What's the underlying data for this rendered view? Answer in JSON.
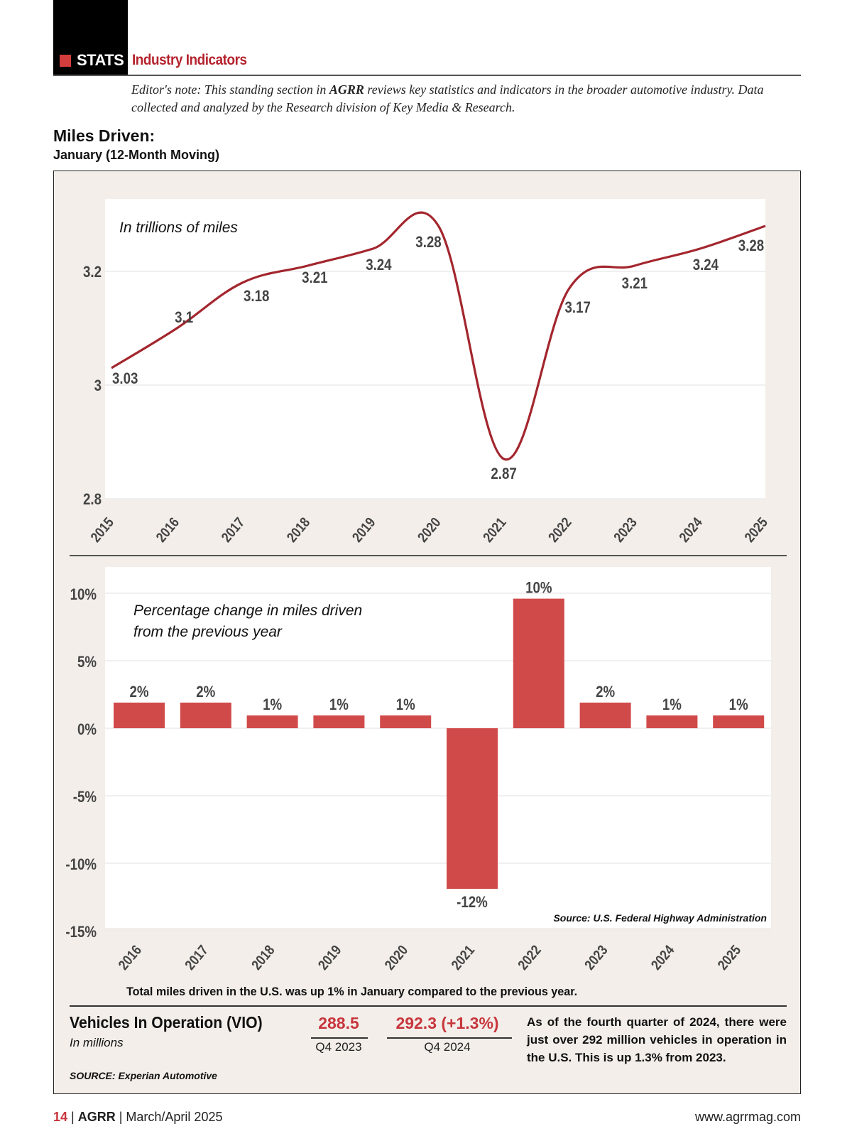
{
  "header": {
    "section_tag": "STATS",
    "section_name": "Industry Indicators",
    "editor_note_prefix": "Editor's note: This standing section in ",
    "editor_note_brand": "AGRR",
    "editor_note_suffix": " reviews key statistics and indicators in the broader automotive industry. Data collected and analyzed by the Research division of Key Media & Research.",
    "colors": {
      "accent": "#c8363d",
      "section_name": "#b5232e",
      "panel_bg": "#f3eee9",
      "line": "#a3262e",
      "bar": "#d14a4a"
    }
  },
  "title": "Miles Driven:",
  "subtitle": "January (12-Month Moving)",
  "chart_data": [
    {
      "type": "line",
      "title": "In trillions of miles",
      "xlabel": "",
      "ylabel": "",
      "x": [
        "2015",
        "2016",
        "2017",
        "2018",
        "2019",
        "2020",
        "2021",
        "2022",
        "2023",
        "2024",
        "2025"
      ],
      "values": [
        3.03,
        3.1,
        3.18,
        3.21,
        3.24,
        3.28,
        2.87,
        3.17,
        3.21,
        3.24,
        3.28
      ],
      "data_labels": [
        "3.03",
        "3.1",
        "3.18",
        "3.21",
        "3.24",
        "3.28",
        "2.87",
        "3.17",
        "3.21",
        "3.24",
        "3.28"
      ],
      "yticks": [
        "2.8",
        "3",
        "3.2"
      ],
      "ytick_values": [
        2.8,
        3.0,
        3.2
      ],
      "ylim": [
        2.8,
        3.3
      ],
      "grid": true
    },
    {
      "type": "bar",
      "title": "Percentage change in miles driven from the previous year",
      "categories": [
        "2016",
        "2017",
        "2018",
        "2019",
        "2020",
        "2021",
        "2022",
        "2023",
        "2024",
        "2025"
      ],
      "values": [
        2,
        2,
        1,
        1,
        1,
        -12,
        10,
        2,
        1,
        1
      ],
      "data_labels": [
        "2%",
        "2%",
        "1%",
        "1%",
        "1%",
        "-12%",
        "10%",
        "2%",
        "1%",
        "1%"
      ],
      "yticks": [
        "10%",
        "5%",
        "0%",
        "-5%",
        "-10%",
        "-15%"
      ],
      "ytick_values": [
        10,
        5,
        0,
        -5,
        -10,
        -15
      ],
      "ylim": [
        -15,
        10
      ],
      "grid": true,
      "source": "Source: U.S. Federal Highway Administration"
    }
  ],
  "caption": "Total miles driven in the U.S. was up 1% in January compared to the previous year.",
  "vio": {
    "title": "Vehicles In Operation (VIO)",
    "unit": "In millions",
    "source": "SOURCE: Experian Automotive",
    "q4_2023_value": "288.5",
    "q4_2023_label": "Q4 2023",
    "q4_2024_value": "292.3 (+1.3%)",
    "q4_2024_label": "Q4 2024",
    "description": "As of the fourth quarter of 2024, there were just over 292 million vehicles in operation in the U.S. This is up 1.3% from 2023."
  },
  "footer": {
    "page_number": "14",
    "brand": "AGRR",
    "issue": "March/April 2025",
    "website": "www.agrrmag.com"
  }
}
